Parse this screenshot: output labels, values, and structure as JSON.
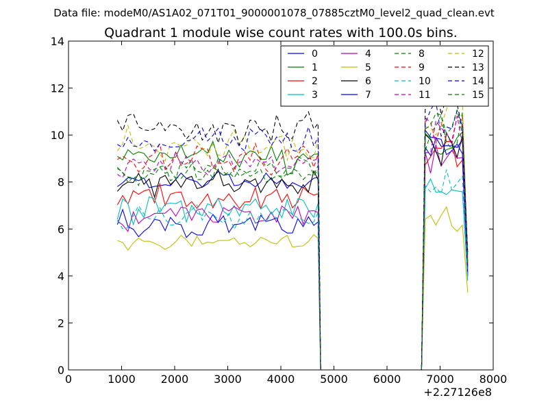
{
  "header": {
    "data_file": "Data file: modeM0/AS1A02_071T01_9000001078_07885cztM0_level2_quad_clean.evt"
  },
  "chart_data": {
    "type": "line",
    "title": "Quadrant 1 module wise count rates with 100.0s bins.",
    "xlabel": "",
    "ylabel": "",
    "x_offset_label": "+2.27126e8",
    "xlim": [
      0,
      8000
    ],
    "ylim": [
      0,
      14
    ],
    "xticks": [
      0,
      1000,
      2000,
      3000,
      4000,
      5000,
      6000,
      7000,
      8000
    ],
    "yticks": [
      0,
      2,
      4,
      6,
      8,
      10,
      12,
      14
    ],
    "legend_position": "top-right",
    "legend_columns": 4,
    "segment_a": {
      "x_start": 920,
      "x_end": 4620,
      "step": 100
    },
    "gap": {
      "x_start": 4750,
      "x_end": 6650,
      "value": 0
    },
    "segment_b": {
      "x_start": 6720,
      "x_end": 7520,
      "step": 100
    },
    "series": [
      {
        "name": "0",
        "color": "#0000ff",
        "dash": "solid",
        "base_a": 8.0,
        "amp_a": 0.25,
        "base_b": 9.6,
        "amp_b": 0.5,
        "end_value": 4.0
      },
      {
        "name": "1",
        "color": "#008000",
        "dash": "solid",
        "base_a": 9.0,
        "amp_a": 0.4,
        "base_b": 9.8,
        "amp_b": 0.5,
        "end_value": 4.3
      },
      {
        "name": "2",
        "color": "#ff0000",
        "dash": "solid",
        "base_a": 7.3,
        "amp_a": 0.35,
        "base_b": 9.2,
        "amp_b": 0.5,
        "end_value": 4.2
      },
      {
        "name": "3",
        "color": "#00bfbf",
        "dash": "solid",
        "base_a": 6.9,
        "amp_a": 0.35,
        "base_b": 7.8,
        "amp_b": 0.4,
        "end_value": 3.8
      },
      {
        "name": "4",
        "color": "#bf00bf",
        "dash": "solid",
        "base_a": 6.5,
        "amp_a": 0.3,
        "base_b": 9.0,
        "amp_b": 0.5,
        "end_value": 4.0
      },
      {
        "name": "5",
        "color": "#bfbf00",
        "dash": "solid",
        "base_a": 5.4,
        "amp_a": 0.25,
        "base_b": 6.3,
        "amp_b": 0.4,
        "end_value": 3.3
      },
      {
        "name": "6",
        "color": "#000000",
        "dash": "solid",
        "base_a": 7.9,
        "amp_a": 0.3,
        "base_b": 9.4,
        "amp_b": 0.5,
        "end_value": 4.4
      },
      {
        "name": "7",
        "color": "#0000ff",
        "dash": "solid",
        "base_a": 6.1,
        "amp_a": 0.3,
        "base_b": 9.1,
        "amp_b": 0.5,
        "end_value": 4.1
      },
      {
        "name": "8",
        "color": "#008000",
        "dash": "dashed",
        "base_a": 8.5,
        "amp_a": 0.35,
        "base_b": 10.0,
        "amp_b": 0.5,
        "end_value": 4.5
      },
      {
        "name": "9",
        "color": "#ff0000",
        "dash": "dashed",
        "base_a": 9.0,
        "amp_a": 0.35,
        "base_b": 10.2,
        "amp_b": 0.5,
        "end_value": 4.6
      },
      {
        "name": "10",
        "color": "#00bfbf",
        "dash": "dashed",
        "base_a": 6.5,
        "amp_a": 0.3,
        "base_b": 8.0,
        "amp_b": 0.4,
        "end_value": 3.9
      },
      {
        "name": "11",
        "color": "#bf00bf",
        "dash": "dashed",
        "base_a": 8.8,
        "amp_a": 0.35,
        "base_b": 10.0,
        "amp_b": 0.5,
        "end_value": 4.5
      },
      {
        "name": "12",
        "color": "#bfbf00",
        "dash": "dashed",
        "base_a": 9.6,
        "amp_a": 0.4,
        "base_b": 10.8,
        "amp_b": 0.6,
        "end_value": 4.8
      },
      {
        "name": "13",
        "color": "#000000",
        "dash": "dashed",
        "base_a": 10.3,
        "amp_a": 0.4,
        "base_b": 11.4,
        "amp_b": 0.6,
        "end_value": 5.0
      },
      {
        "name": "14",
        "color": "#0000ff",
        "dash": "dashed",
        "base_a": 9.7,
        "amp_a": 0.4,
        "base_b": 10.9,
        "amp_b": 0.6,
        "end_value": 4.8
      },
      {
        "name": "15",
        "color": "#008000",
        "dash": "dashed",
        "base_a": 8.3,
        "amp_a": 0.3,
        "base_b": 10.4,
        "amp_b": 0.6,
        "end_value": 4.6
      }
    ]
  }
}
